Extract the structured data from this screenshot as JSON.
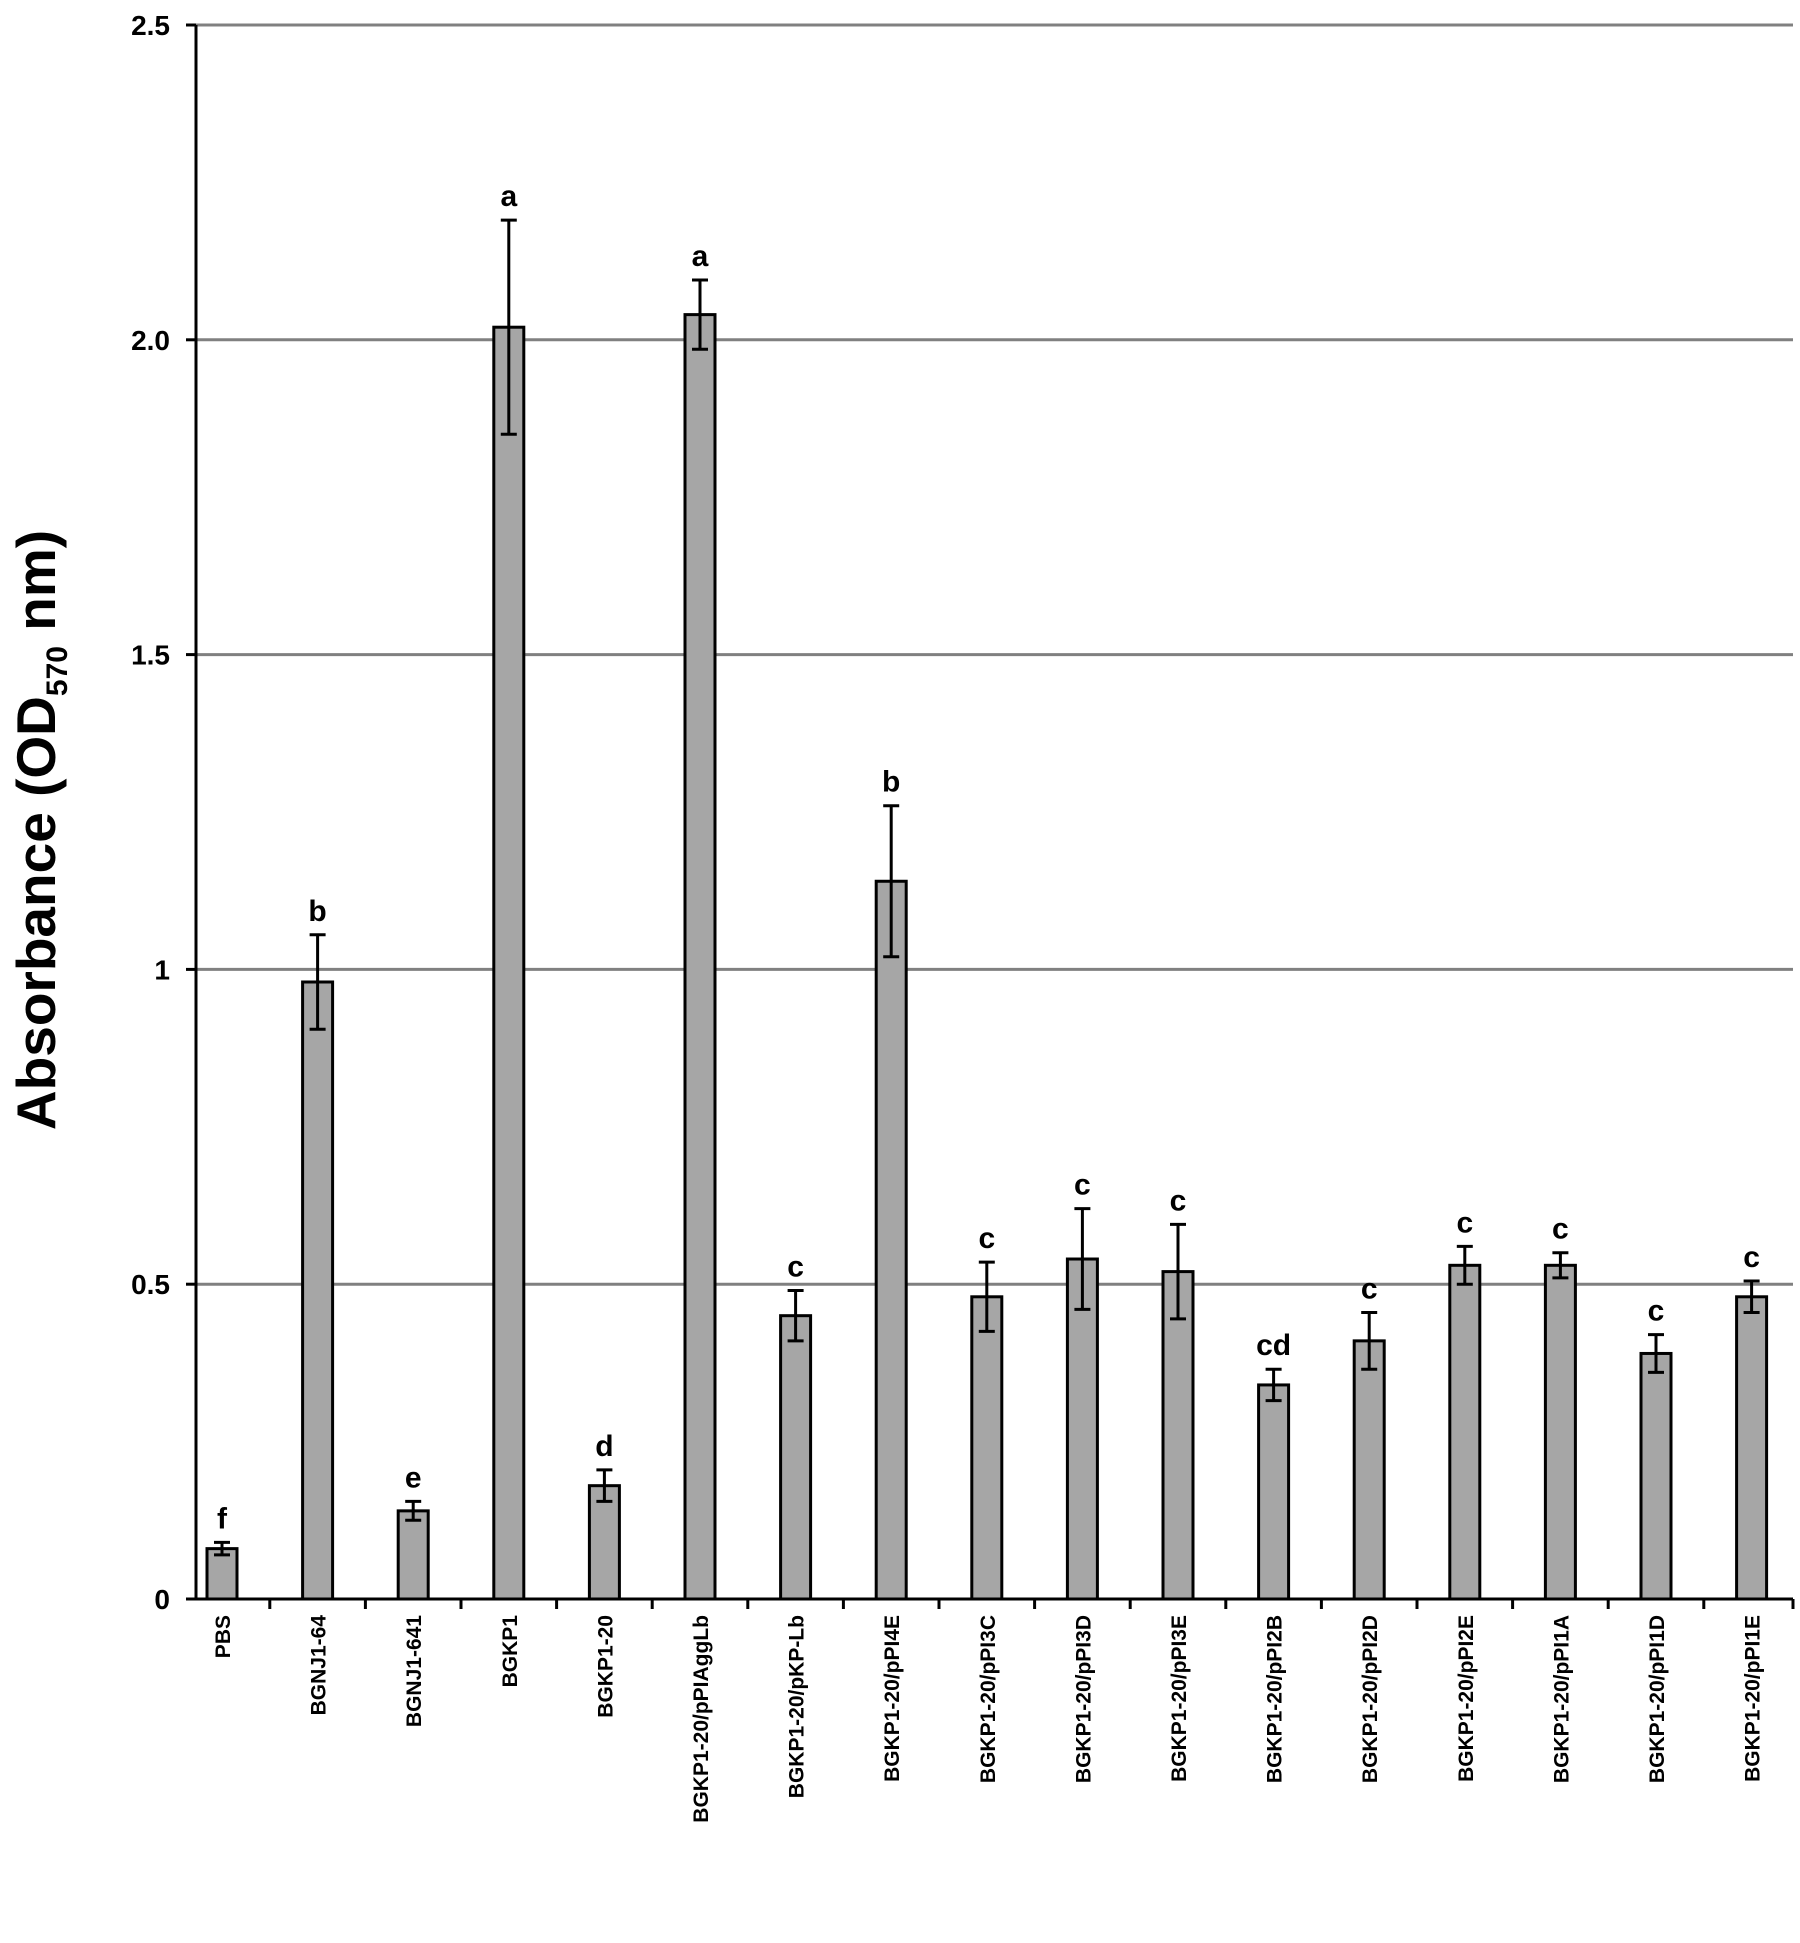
{
  "chart_data": {
    "type": "bar",
    "ylabel": "Absorbance (OD",
    "ylabel_sub": "570",
    "ylabel_end": " nm)",
    "categories": [
      "PBS",
      "BGNJ1-64",
      "BGNJ1-641",
      "BGKP1",
      "BGKP1-20",
      "BGKP1-20/pPIAggLb",
      "BGKP1-20/pKP-Lb",
      "BGKP1-20/pPI4E",
      "BGKP1-20/pPI3C",
      "BGKP1-20/pPI3D",
      "BGKP1-20/pPI3E",
      "BGKP1-20/pPI2B",
      "BGKP1-20/pPI2D",
      "BGKP1-20/pPI2E",
      "BGKP1-20/pPI1A",
      "BGKP1-20/pPI1D",
      "BGKP1-20/pPI1E"
    ],
    "values": [
      0.08,
      0.98,
      0.14,
      2.02,
      0.18,
      2.04,
      0.45,
      1.14,
      0.48,
      0.54,
      0.52,
      0.34,
      0.41,
      0.53,
      0.53,
      0.39,
      0.48
    ],
    "errors": [
      0.01,
      0.075,
      0.015,
      0.17,
      0.025,
      0.055,
      0.04,
      0.12,
      0.055,
      0.08,
      0.075,
      0.025,
      0.045,
      0.03,
      0.02,
      0.03,
      0.025
    ],
    "letters": [
      "f",
      "b",
      "e",
      "a",
      "d",
      "a",
      "c",
      "b",
      "c",
      "c",
      "c",
      "cd",
      "c",
      "c",
      "c",
      "c",
      "c"
    ],
    "color": "#a6a6a6",
    "ylim": [
      0,
      2.5
    ],
    "yticks": [
      0,
      0.5,
      1,
      1.5,
      {
        "value": 2,
        "label": "2.0"
      },
      2.5
    ],
    "grid": true
  }
}
